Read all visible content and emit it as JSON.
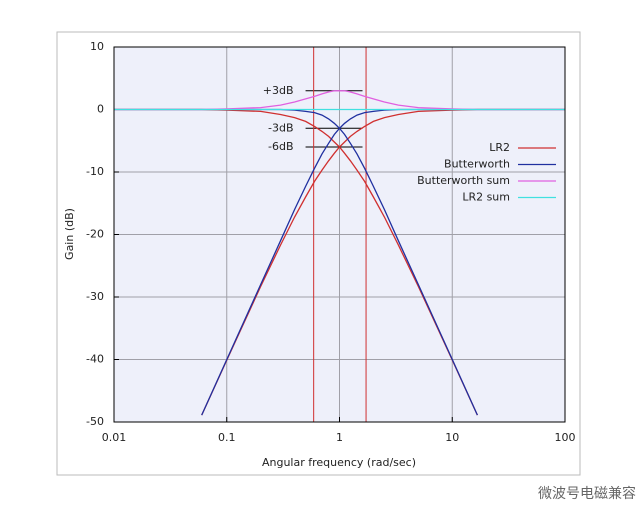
{
  "chart_data": {
    "type": "line",
    "xlabel": "Angular frequency (rad/sec)",
    "ylabel": "Gain (dB)",
    "xscale": "log",
    "xlim": [
      0.01,
      100
    ],
    "ylim": [
      -50,
      10
    ],
    "xticks": [
      0.01,
      0.1,
      1,
      10,
      100
    ],
    "yticks": [
      -50,
      -40,
      -30,
      -20,
      -10,
      0,
      10
    ],
    "grid": true,
    "legend": "right",
    "x": [
      0.01,
      0.06,
      0.1,
      0.2,
      0.3,
      0.4,
      0.5,
      0.6,
      0.7,
      0.8,
      0.9,
      1,
      1.11,
      1.25,
      1.43,
      1.67,
      2,
      2.5,
      3.33,
      5,
      10,
      16.7,
      100
    ],
    "series": [
      {
        "name": "LR2",
        "color": "#d03030",
        "values": [
          null,
          -48.9,
          -40.1,
          -28.3,
          -21.7,
          -17.2,
          -14.0,
          -11.5,
          -9.7,
          -8.2,
          -7.0,
          -6.0,
          -5.2,
          -4.3,
          -3.5,
          -2.7,
          -1.9,
          -1.3,
          -0.8,
          -0.3,
          -0.1,
          0.0,
          0.0
        ]
      },
      {
        "color": "#d03030",
        "values": [
          0.0,
          0.0,
          -0.1,
          -0.3,
          -0.8,
          -1.3,
          -1.9,
          -2.7,
          -3.5,
          -4.3,
          -5.2,
          -6.0,
          -7.0,
          -8.2,
          -9.7,
          -11.5,
          -14.0,
          -17.2,
          -21.7,
          -28.3,
          -40.1,
          -48.9,
          null
        ]
      },
      {
        "name": "Butterworth",
        "color": "#2030a0",
        "values": [
          null,
          -48.9,
          -40.0,
          -28.0,
          -21.0,
          -16.0,
          -12.3,
          -9.4,
          -7.1,
          -5.4,
          -4.0,
          -3.0,
          -2.2,
          -1.5,
          -0.9,
          -0.5,
          -0.3,
          -0.1,
          0.0,
          0.0,
          0.0,
          0.0,
          0.0
        ]
      },
      {
        "color": "#2030a0",
        "values": [
          0.0,
          0.0,
          0.0,
          0.0,
          0.0,
          -0.1,
          -0.3,
          -0.5,
          -0.9,
          -1.5,
          -2.2,
          -3.0,
          -4.0,
          -5.4,
          -7.1,
          -9.4,
          -12.3,
          -16.0,
          -21.0,
          -28.0,
          -40.0,
          -48.9,
          null
        ]
      },
      {
        "name": "Butterworth sum",
        "color": "#e060e0",
        "values": [
          0.0,
          0.0,
          0.1,
          0.3,
          0.7,
          1.2,
          1.7,
          2.1,
          2.5,
          2.8,
          3.0,
          3.0,
          3.0,
          2.8,
          2.5,
          2.1,
          1.7,
          1.2,
          0.7,
          0.3,
          0.1,
          0.0,
          0.0
        ]
      },
      {
        "name": "LR2 sum",
        "color": "#40e0e0",
        "values": [
          0,
          0,
          0,
          0,
          0,
          0,
          0,
          0,
          0,
          0,
          0,
          0,
          0,
          0,
          0,
          0,
          0,
          0,
          0,
          0,
          0,
          0,
          0
        ]
      }
    ],
    "markers": [
      {
        "x": 0.59,
        "color": "#d03030"
      },
      {
        "x": 1.72,
        "color": "#d03030"
      }
    ],
    "annotations": [
      {
        "text": "+3dB",
        "y": 3
      },
      {
        "text": "-3dB",
        "y": -3
      },
      {
        "text": "-6dB",
        "y": -6
      }
    ]
  },
  "watermark": "微波号电磁兼容"
}
